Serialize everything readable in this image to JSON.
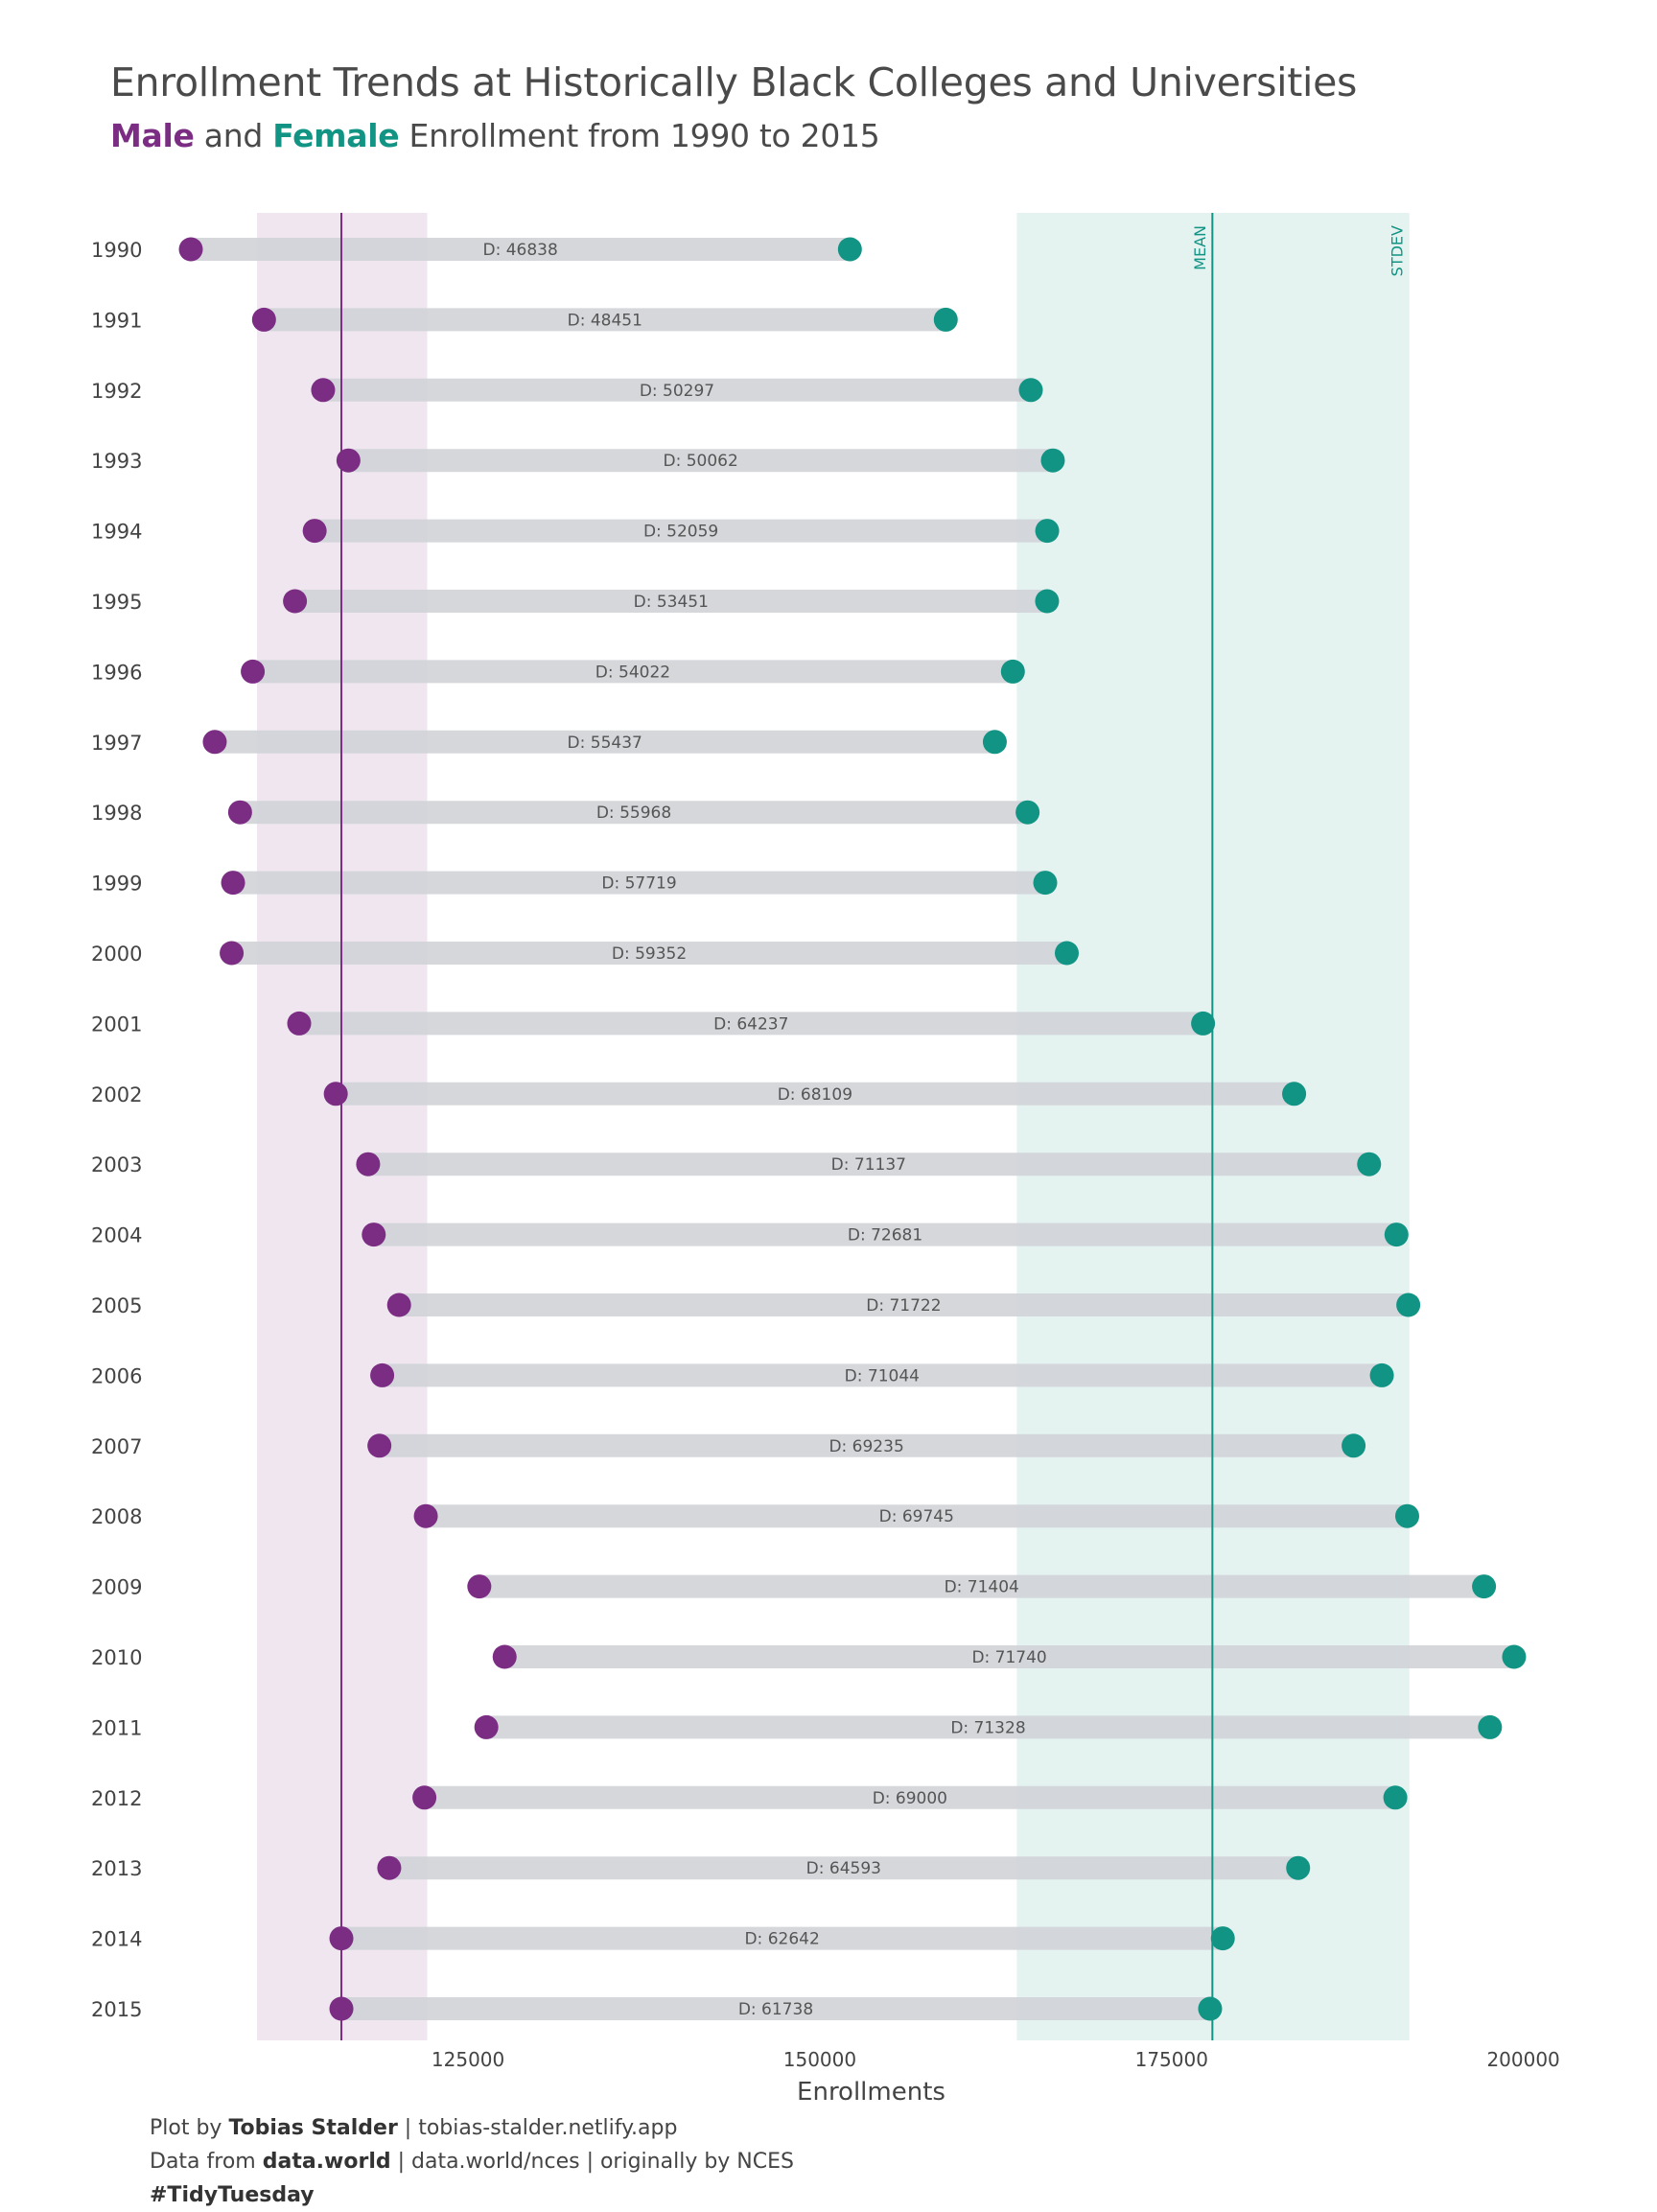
{
  "title": "Enrollment Trends at Historically Black Colleges and Universities",
  "subtitle": {
    "male": "Male",
    "and": " and ",
    "female": "Female",
    "rest": " Enrollment from 1990 to 2015"
  },
  "caption": {
    "line1_pre": "Plot by ",
    "line1_bold": "Tobias Stalder",
    "line1_post": " | tobias-stalder.netlify.app",
    "line2_pre": "Data from ",
    "line2_bold": "data.world",
    "line2_post": " | data.world/nces | originally by NCES",
    "line3_bold": "#TidyTuesday"
  },
  "colors": {
    "male": "#7b2c83",
    "female": "#119484",
    "bar": "#d3d5da",
    "male_band": "#efe6f0",
    "female_band": "#e4f2f0",
    "text": "#444444"
  },
  "chart_data": {
    "type": "dumbbell",
    "xlabel": "Enrollments",
    "x_ticks": [
      125000,
      150000,
      175000,
      200000
    ],
    "x_tick_labels": [
      "125000",
      "150000",
      "175000",
      "200000"
    ],
    "xlim": [
      102300,
      205000
    ],
    "diff_prefix": "D:  ",
    "years": [
      "1990",
      "1991",
      "1992",
      "1993",
      "1994",
      "1995",
      "1996",
      "1997",
      "1998",
      "1999",
      "2000",
      "2001",
      "2002",
      "2003",
      "2004",
      "2005",
      "2006",
      "2007",
      "2008",
      "2009",
      "2010",
      "2011",
      "2012",
      "2013",
      "2014",
      "2015"
    ],
    "series": [
      {
        "name": "Male",
        "values": [
          105300,
          110500,
          114700,
          116500,
          114100,
          112700,
          109700,
          107000,
          108800,
          108300,
          108200,
          113000,
          115600,
          117900,
          118300,
          120100,
          118900,
          118700,
          122000,
          125800,
          127600,
          126300,
          121900,
          119400,
          116000,
          116000
        ]
      },
      {
        "name": "Female",
        "values": [
          152138,
          158951,
          164997,
          166562,
          166159,
          166151,
          163722,
          162437,
          164768,
          166019,
          167552,
          177237,
          183709,
          189037,
          190981,
          191822,
          189944,
          187935,
          191745,
          197204,
          199340,
          197628,
          190900,
          183993,
          178642,
          177738
        ]
      },
      {
        "name": "Difference",
        "values": [
          46838,
          48451,
          50297,
          50062,
          52059,
          53451,
          54022,
          55437,
          55968,
          57719,
          59352,
          64237,
          68109,
          71137,
          72681,
          71722,
          71044,
          69235,
          69745,
          71404,
          71740,
          71328,
          69000,
          64593,
          62642,
          61738
        ]
      }
    ],
    "male_mean": 116000,
    "male_band": [
      110000,
      122100
    ],
    "female_mean": 177900,
    "female_band": [
      164000,
      191900
    ],
    "mean_label": "MEAN",
    "stdev_label": "STDEV"
  }
}
